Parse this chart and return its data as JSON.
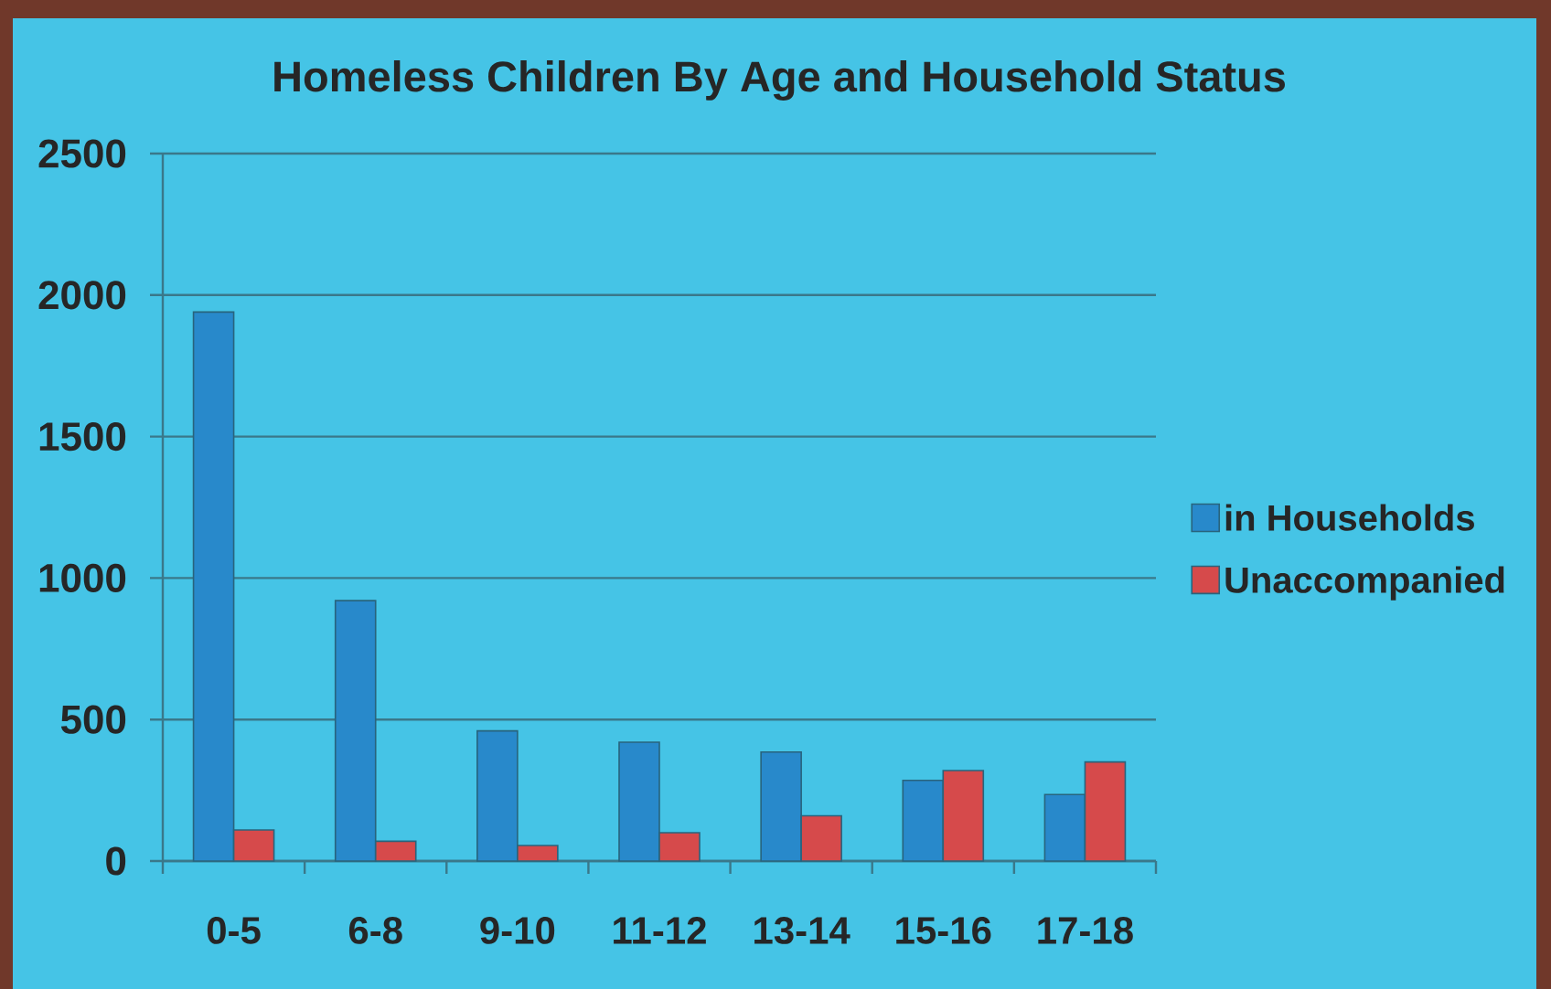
{
  "chart_data": {
    "type": "bar",
    "title": "Homeless Children By Age and Household Status",
    "categories": [
      "0-5",
      "6-8",
      "9-10",
      "11-12",
      "13-14",
      "15-16",
      "17-18"
    ],
    "series": [
      {
        "name": "in Households",
        "color": "#2889cb",
        "values": [
          1940,
          920,
          460,
          420,
          385,
          285,
          235
        ]
      },
      {
        "name": "Unaccompanied",
        "color": "#d64a4b",
        "values": [
          110,
          70,
          55,
          100,
          160,
          320,
          350
        ]
      }
    ],
    "ylim": [
      0,
      2500
    ],
    "yticks": [
      0,
      500,
      1000,
      1500,
      2000,
      2500
    ],
    "grid": "y",
    "legend": "right"
  }
}
